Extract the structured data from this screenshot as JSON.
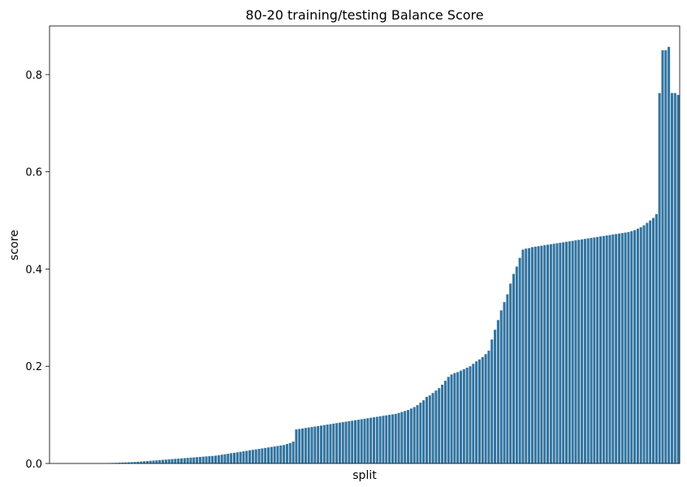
{
  "chart_data": {
    "type": "bar",
    "title": "80-20 training/testing Balance Score",
    "xlabel": "split",
    "ylabel": "score",
    "ylim": [
      0,
      0.9
    ],
    "yticks": [
      0.0,
      0.2,
      0.4,
      0.6,
      0.8
    ],
    "ytick_labels": [
      "0.0",
      "0.2",
      "0.4",
      "0.6",
      "0.8"
    ],
    "grid": false,
    "legend": "none",
    "bar_color": "#3274a1",
    "series": [
      {
        "values": [
          0.0,
          0.0,
          0.0,
          0.0,
          0.0,
          0.0,
          0.0,
          0.0,
          0.0,
          0.0,
          0.0,
          0.0,
          0.0,
          0.0,
          0.0,
          0.0,
          0.0,
          0.0,
          0.0005,
          0.0008,
          0.001,
          0.0012,
          0.0015,
          0.0018,
          0.002,
          0.0023,
          0.0026,
          0.003,
          0.0035,
          0.004,
          0.0045,
          0.005,
          0.0055,
          0.006,
          0.0065,
          0.007,
          0.0075,
          0.008,
          0.0085,
          0.009,
          0.0095,
          0.01,
          0.0105,
          0.011,
          0.0115,
          0.012,
          0.0125,
          0.013,
          0.0135,
          0.014,
          0.0145,
          0.015,
          0.0155,
          0.016,
          0.017,
          0.018,
          0.019,
          0.02,
          0.021,
          0.022,
          0.023,
          0.024,
          0.025,
          0.026,
          0.027,
          0.028,
          0.029,
          0.03,
          0.031,
          0.032,
          0.033,
          0.034,
          0.035,
          0.036,
          0.037,
          0.038,
          0.04,
          0.042,
          0.045,
          0.07,
          0.071,
          0.072,
          0.073,
          0.074,
          0.075,
          0.076,
          0.077,
          0.078,
          0.079,
          0.08,
          0.081,
          0.082,
          0.083,
          0.084,
          0.085,
          0.086,
          0.087,
          0.088,
          0.089,
          0.09,
          0.091,
          0.092,
          0.093,
          0.094,
          0.095,
          0.096,
          0.097,
          0.098,
          0.099,
          0.1,
          0.101,
          0.102,
          0.104,
          0.106,
          0.108,
          0.11,
          0.113,
          0.116,
          0.12,
          0.125,
          0.13,
          0.137,
          0.14,
          0.145,
          0.15,
          0.155,
          0.162,
          0.17,
          0.178,
          0.183,
          0.186,
          0.188,
          0.191,
          0.194,
          0.197,
          0.2,
          0.205,
          0.21,
          0.214,
          0.219,
          0.225,
          0.232,
          0.255,
          0.275,
          0.295,
          0.315,
          0.332,
          0.348,
          0.37,
          0.39,
          0.405,
          0.423,
          0.44,
          0.442,
          0.443,
          0.445,
          0.446,
          0.447,
          0.448,
          0.449,
          0.45,
          0.451,
          0.452,
          0.453,
          0.454,
          0.455,
          0.456,
          0.457,
          0.458,
          0.459,
          0.46,
          0.461,
          0.462,
          0.463,
          0.464,
          0.465,
          0.466,
          0.467,
          0.468,
          0.469,
          0.47,
          0.471,
          0.472,
          0.473,
          0.474,
          0.475,
          0.476,
          0.478,
          0.48,
          0.483,
          0.486,
          0.49,
          0.495,
          0.5,
          0.505,
          0.513,
          0.762,
          0.85,
          0.85,
          0.857,
          0.762,
          0.762,
          0.758
        ]
      }
    ]
  }
}
